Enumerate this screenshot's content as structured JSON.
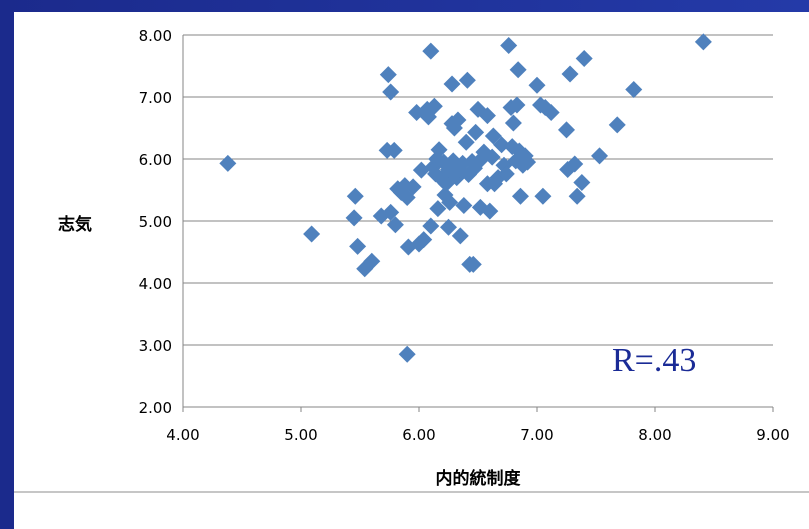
{
  "chart_data": {
    "type": "scatter",
    "xlabel": "内的統制度",
    "ylabel": "志気",
    "annotation": "R=.43",
    "xlim": [
      4.0,
      9.0
    ],
    "ylim": [
      2.0,
      8.0
    ],
    "x_ticks": [
      "4.00",
      "5.00",
      "6.00",
      "7.00",
      "8.00",
      "9.00"
    ],
    "y_ticks": [
      "2.00",
      "3.00",
      "4.00",
      "5.00",
      "6.00",
      "7.00",
      "8.00"
    ],
    "grid": "horizontal",
    "colors": {
      "marker": "#4f81bd",
      "grid": "#868686",
      "annotation": "#1a2b96"
    },
    "series": [
      {
        "points": [
          [
            4.38,
            5.93
          ],
          [
            5.09,
            4.79
          ],
          [
            5.45,
            5.05
          ],
          [
            5.46,
            5.4
          ],
          [
            5.48,
            4.59
          ],
          [
            5.54,
            4.23
          ],
          [
            5.6,
            4.35
          ],
          [
            5.68,
            5.08
          ],
          [
            5.73,
            6.14
          ],
          [
            5.74,
            7.36
          ],
          [
            5.76,
            7.08
          ],
          [
            5.76,
            5.14
          ],
          [
            5.79,
            6.14
          ],
          [
            5.8,
            4.94
          ],
          [
            5.82,
            5.52
          ],
          [
            5.85,
            5.46
          ],
          [
            5.88,
            5.57
          ],
          [
            5.9,
            2.85
          ],
          [
            5.9,
            5.38
          ],
          [
            5.91,
            4.58
          ],
          [
            5.95,
            5.55
          ],
          [
            5.98,
            6.75
          ],
          [
            6.0,
            4.63
          ],
          [
            6.02,
            5.82
          ],
          [
            6.04,
            4.7
          ],
          [
            6.07,
            6.8
          ],
          [
            6.08,
            6.68
          ],
          [
            6.1,
            7.74
          ],
          [
            6.1,
            4.92
          ],
          [
            6.12,
            5.87
          ],
          [
            6.13,
            6.85
          ],
          [
            6.14,
            5.76
          ],
          [
            6.15,
            6.0
          ],
          [
            6.16,
            5.2
          ],
          [
            6.17,
            6.15
          ],
          [
            6.19,
            5.68
          ],
          [
            6.21,
            5.95
          ],
          [
            6.22,
            5.42
          ],
          [
            6.23,
            5.6
          ],
          [
            6.25,
            4.9
          ],
          [
            6.25,
            5.83
          ],
          [
            6.26,
            5.3
          ],
          [
            6.27,
            5.76
          ],
          [
            6.28,
            7.21
          ],
          [
            6.28,
            6.57
          ],
          [
            6.29,
            5.97
          ],
          [
            6.3,
            6.5
          ],
          [
            6.32,
            5.7
          ],
          [
            6.33,
            6.63
          ],
          [
            6.34,
            5.83
          ],
          [
            6.35,
            4.76
          ],
          [
            6.37,
            5.93
          ],
          [
            6.38,
            5.25
          ],
          [
            6.4,
            6.27
          ],
          [
            6.41,
            7.27
          ],
          [
            6.42,
            5.75
          ],
          [
            6.43,
            4.3
          ],
          [
            6.45,
            5.96
          ],
          [
            6.46,
            4.3
          ],
          [
            6.47,
            5.85
          ],
          [
            6.48,
            6.43
          ],
          [
            6.5,
            6.8
          ],
          [
            6.52,
            5.22
          ],
          [
            6.53,
            6.0
          ],
          [
            6.55,
            6.11
          ],
          [
            6.58,
            5.6
          ],
          [
            6.58,
            6.7
          ],
          [
            6.6,
            5.16
          ],
          [
            6.62,
            6.03
          ],
          [
            6.63,
            6.37
          ],
          [
            6.64,
            5.6
          ],
          [
            6.67,
            5.7
          ],
          [
            6.7,
            6.23
          ],
          [
            6.72,
            5.9
          ],
          [
            6.74,
            5.76
          ],
          [
            6.76,
            7.83
          ],
          [
            6.78,
            6.83
          ],
          [
            6.79,
            6.2
          ],
          [
            6.8,
            6.58
          ],
          [
            6.82,
            5.97
          ],
          [
            6.83,
            6.87
          ],
          [
            6.84,
            7.44
          ],
          [
            6.85,
            6.13
          ],
          [
            6.86,
            5.4
          ],
          [
            6.88,
            5.9
          ],
          [
            6.9,
            6.05
          ],
          [
            6.92,
            5.95
          ],
          [
            7.0,
            7.19
          ],
          [
            7.03,
            6.87
          ],
          [
            7.05,
            5.4
          ],
          [
            7.07,
            6.83
          ],
          [
            7.12,
            6.75
          ],
          [
            7.25,
            6.47
          ],
          [
            7.26,
            5.83
          ],
          [
            7.28,
            7.37
          ],
          [
            7.32,
            5.92
          ],
          [
            7.34,
            5.4
          ],
          [
            7.38,
            5.62
          ],
          [
            7.4,
            7.62
          ],
          [
            7.53,
            6.05
          ],
          [
            7.68,
            6.55
          ],
          [
            7.82,
            7.12
          ],
          [
            8.41,
            7.89
          ]
        ]
      }
    ]
  }
}
